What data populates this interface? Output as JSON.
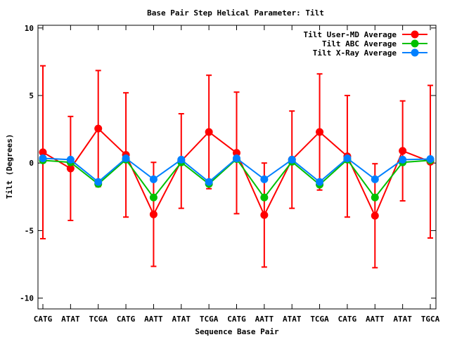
{
  "chart_data": {
    "type": "line",
    "title": "Base Pair Step Helical Parameter: Tilt",
    "xlabel": "Sequence Base Pair",
    "ylabel": "Tilt (Degrees)",
    "ylim": [
      -10.8,
      10.2
    ],
    "yticks": [
      10,
      5,
      0,
      -5,
      -10
    ],
    "grid": false,
    "legend_position": "top-right",
    "categories": [
      "CATG",
      "ATAT",
      "TCGA",
      "CATG",
      "AATT",
      "ATAT",
      "TCGA",
      "CATG",
      "AATT",
      "ATAT",
      "TCGA",
      "CATG",
      "AATT",
      "ATAT",
      "TGCA"
    ],
    "series": [
      {
        "name": "Tilt User-MD Average",
        "color": "#ff0000",
        "values": [
          0.8,
          -0.4,
          2.55,
          0.6,
          -3.8,
          0.15,
          2.3,
          0.75,
          -3.85,
          0.25,
          2.3,
          0.5,
          -3.9,
          0.9,
          0.1
        ],
        "error": [
          6.4,
          3.85,
          4.3,
          4.6,
          3.85,
          3.5,
          4.2,
          4.5,
          3.85,
          3.6,
          4.3,
          4.5,
          3.85,
          3.7,
          5.65
        ]
      },
      {
        "name": "Tilt ABC Average",
        "color": "#00c000",
        "values": [
          0.2,
          0.05,
          -1.55,
          0.25,
          -2.55,
          0.05,
          -1.55,
          0.3,
          -2.55,
          0.1,
          -1.6,
          0.25,
          -2.55,
          0.05,
          0.2
        ]
      },
      {
        "name": "Tilt X-Ray Average",
        "color": "#0080ff",
        "values": [
          0.35,
          0.25,
          -1.4,
          0.35,
          -1.2,
          0.25,
          -1.4,
          0.35,
          -1.2,
          0.25,
          -1.4,
          0.35,
          -1.2,
          0.25,
          0.3
        ]
      }
    ]
  }
}
